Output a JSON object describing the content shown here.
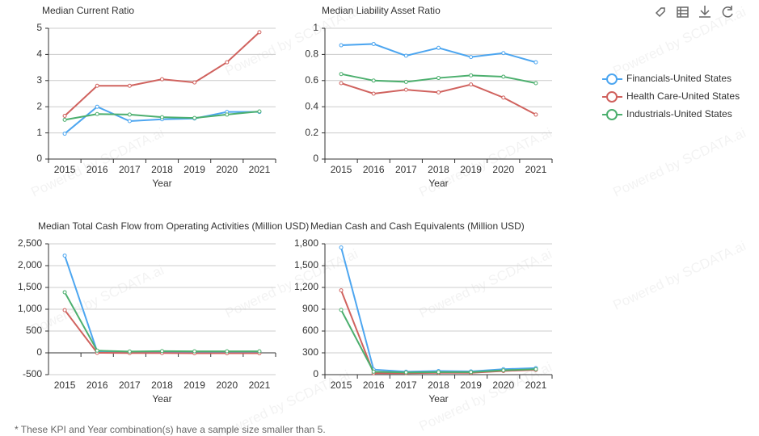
{
  "chart_data": [
    {
      "type": "line",
      "title": "Median Current Ratio",
      "x_label": "Year",
      "categories": [
        "2015",
        "2016",
        "2017",
        "2018",
        "2019",
        "2020",
        "2021"
      ],
      "ylim": [
        0,
        5
      ],
      "yticks": [
        0,
        1,
        2,
        3,
        4,
        5
      ],
      "grid": true,
      "series": [
        {
          "name": "Financials-United States",
          "color": "#4da6f0",
          "values": [
            0.97,
            2.0,
            1.45,
            1.52,
            1.55,
            1.8,
            1.8
          ]
        },
        {
          "name": "Health Care-United States",
          "color": "#d0625e",
          "values": [
            1.65,
            2.8,
            2.8,
            3.05,
            2.93,
            3.7,
            4.85
          ]
        },
        {
          "name": "Industrials-United States",
          "color": "#4caf6e",
          "values": [
            1.5,
            1.72,
            1.7,
            1.6,
            1.57,
            1.7,
            1.82
          ]
        }
      ]
    },
    {
      "type": "line",
      "title": "Median Liability Asset Ratio",
      "x_label": "Year",
      "categories": [
        "2015",
        "2016",
        "2017",
        "2018",
        "2019",
        "2020",
        "2021"
      ],
      "ylim": [
        0,
        1
      ],
      "yticks": [
        0,
        0.2,
        0.4,
        0.6,
        0.8,
        1
      ],
      "grid": true,
      "series": [
        {
          "name": "Financials-United States",
          "color": "#4da6f0",
          "values": [
            0.87,
            0.88,
            0.79,
            0.85,
            0.78,
            0.81,
            0.74
          ]
        },
        {
          "name": "Health Care-United States",
          "color": "#d0625e",
          "values": [
            0.58,
            0.5,
            0.53,
            0.51,
            0.57,
            0.47,
            0.34
          ]
        },
        {
          "name": "Industrials-United States",
          "color": "#4caf6e",
          "values": [
            0.65,
            0.6,
            0.59,
            0.62,
            0.64,
            0.63,
            0.58
          ]
        }
      ]
    },
    {
      "type": "line",
      "title": "Median Total Cash Flow from Operating Activities (Million USD)",
      "x_label": "Year",
      "categories": [
        "2015",
        "2016",
        "2017",
        "2018",
        "2019",
        "2020",
        "2021"
      ],
      "ylim": [
        -500,
        2500
      ],
      "yticks": [
        -500,
        0,
        500,
        {
          "value": 1000,
          "label": "1,000"
        },
        {
          "value": 1500,
          "label": "1,500"
        },
        {
          "value": 2000,
          "label": "2,000"
        },
        {
          "value": 2500,
          "label": "2,500"
        }
      ],
      "grid": true,
      "series": [
        {
          "name": "Financials-United States",
          "color": "#4da6f0",
          "values": [
            2230,
            30,
            20,
            20,
            20,
            20,
            20
          ]
        },
        {
          "name": "Health Care-United States",
          "color": "#d0625e",
          "values": [
            980,
            0,
            -5,
            -5,
            -10,
            -10,
            -10
          ]
        },
        {
          "name": "Industrials-United States",
          "color": "#4caf6e",
          "values": [
            1390,
            50,
            30,
            40,
            35,
            35,
            35
          ]
        }
      ]
    },
    {
      "type": "line",
      "title": "Median Cash and Cash Equivalents (Million USD)",
      "x_label": "Year",
      "categories": [
        "2015",
        "2016",
        "2017",
        "2018",
        "2019",
        "2020",
        "2021"
      ],
      "ylim": [
        0,
        1800
      ],
      "yticks": [
        0,
        300,
        600,
        900,
        {
          "value": 1200,
          "label": "1,200"
        },
        {
          "value": 1500,
          "label": "1,500"
        },
        {
          "value": 1800,
          "label": "1,800"
        }
      ],
      "grid": true,
      "series": [
        {
          "name": "Financials-United States",
          "color": "#4da6f0",
          "values": [
            1750,
            70,
            40,
            50,
            45,
            75,
            90
          ]
        },
        {
          "name": "Health Care-United States",
          "color": "#d0625e",
          "values": [
            1160,
            20,
            20,
            25,
            25,
            50,
            65
          ]
        },
        {
          "name": "Industrials-United States",
          "color": "#4caf6e",
          "values": [
            890,
            40,
            30,
            35,
            35,
            60,
            75
          ]
        }
      ]
    }
  ],
  "footnote": "* These KPI and Year combination(s) have a sample size smaller than 5.",
  "watermark": "Powered by SCDATA.ai"
}
